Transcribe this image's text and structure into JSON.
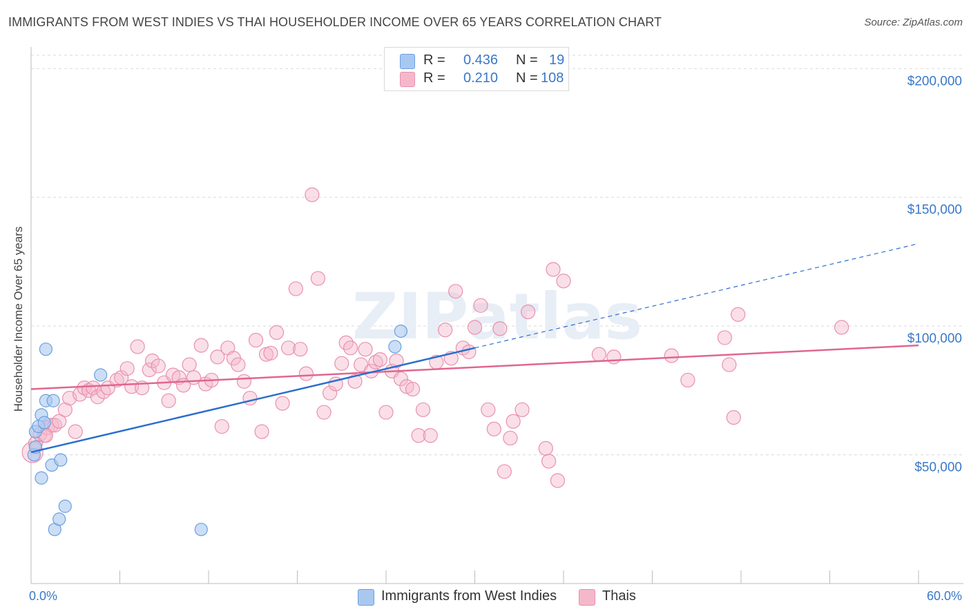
{
  "title": "IMMIGRANTS FROM WEST INDIES VS THAI HOUSEHOLDER INCOME OVER 65 YEARS CORRELATION CHART",
  "source": "Source: ZipAtlas.com",
  "watermark": "ZIPatlas",
  "legend": {
    "series1": {
      "r_label": "R =",
      "r_value": "0.436",
      "n_label": "N =",
      "n_value": "19"
    },
    "series2": {
      "r_label": "R =",
      "r_value": "0.210",
      "n_label": "N =",
      "n_value": "108"
    }
  },
  "colors": {
    "blue_fill": "#a9c8f0",
    "blue_stroke": "#6a9fe0",
    "blue_line": "#2a6ecf",
    "pink_fill": "#f5b8cb",
    "pink_stroke": "#e890ad",
    "pink_line": "#e06690",
    "axis_label": "#3a78c8"
  },
  "chart_data": {
    "type": "scatter",
    "title": "IMMIGRANTS FROM WEST INDIES VS THAI HOUSEHOLDER INCOME OVER 65 YEARS CORRELATION CHART",
    "xlabel": "",
    "ylabel": "Householder Income Over 65 years",
    "xlim": [
      0,
      60
    ],
    "ylim": [
      0,
      210000
    ],
    "x_tick_labels": [
      "0.0%",
      "60.0%"
    ],
    "y_ticks": [
      {
        "value": 50000,
        "label": "$50,000"
      },
      {
        "value": 100000,
        "label": "$100,000"
      },
      {
        "value": 150000,
        "label": "$150,000"
      },
      {
        "value": 200000,
        "label": "$200,000"
      }
    ],
    "series": [
      {
        "name": "Immigrants from West Indies",
        "color": "blue",
        "points": [
          [
            0.2,
            50000
          ],
          [
            0.3,
            53000
          ],
          [
            0.3,
            59000
          ],
          [
            0.5,
            61000
          ],
          [
            0.7,
            41000
          ],
          [
            0.7,
            65500
          ],
          [
            0.9,
            62500
          ],
          [
            1.0,
            71000
          ],
          [
            1.0,
            91000
          ],
          [
            1.4,
            46000
          ],
          [
            1.5,
            71000
          ],
          [
            1.6,
            21000
          ],
          [
            1.9,
            25000
          ],
          [
            2.0,
            48000
          ],
          [
            2.3,
            30000
          ],
          [
            4.7,
            81000
          ],
          [
            11.5,
            21000
          ],
          [
            24.6,
            92000
          ],
          [
            25.0,
            98000
          ]
        ],
        "trend": {
          "x0": 0,
          "y0": 51000,
          "x1": 30,
          "y1": 91500,
          "dash_x1": 60,
          "dash_y1": 132000
        }
      },
      {
        "name": "Thais",
        "color": "pink",
        "points": [
          [
            0.1,
            51000
          ],
          [
            0.3,
            54500
          ],
          [
            0.6,
            58000
          ],
          [
            0.9,
            57500
          ],
          [
            1.1,
            60500
          ],
          [
            1.4,
            61500
          ],
          [
            1.6,
            61500
          ],
          [
            1.9,
            63000
          ],
          [
            2.3,
            67500
          ],
          [
            2.6,
            72000
          ],
          [
            3.0,
            59000
          ],
          [
            3.3,
            73500
          ],
          [
            3.6,
            76000
          ],
          [
            3.9,
            75000
          ],
          [
            4.2,
            76000
          ],
          [
            4.5,
            72500
          ],
          [
            4.9,
            74500
          ],
          [
            5.2,
            76000
          ],
          [
            5.8,
            79000
          ],
          [
            6.1,
            80000
          ],
          [
            6.5,
            83500
          ],
          [
            6.8,
            76500
          ],
          [
            7.2,
            92000
          ],
          [
            7.5,
            76000
          ],
          [
            8.0,
            83000
          ],
          [
            8.2,
            86500
          ],
          [
            8.6,
            84500
          ],
          [
            9.0,
            78000
          ],
          [
            9.3,
            71000
          ],
          [
            9.6,
            81000
          ],
          [
            10.0,
            80000
          ],
          [
            10.3,
            77000
          ],
          [
            10.7,
            85000
          ],
          [
            11.0,
            80000
          ],
          [
            11.5,
            92500
          ],
          [
            11.8,
            77500
          ],
          [
            12.2,
            79000
          ],
          [
            12.6,
            88000
          ],
          [
            12.9,
            61000
          ],
          [
            13.3,
            91500
          ],
          [
            13.7,
            87500
          ],
          [
            14.0,
            85000
          ],
          [
            14.4,
            78500
          ],
          [
            14.8,
            72000
          ],
          [
            15.2,
            94500
          ],
          [
            15.6,
            59000
          ],
          [
            15.9,
            89000
          ],
          [
            16.2,
            89500
          ],
          [
            16.6,
            97500
          ],
          [
            17.0,
            70000
          ],
          [
            17.4,
            91500
          ],
          [
            17.9,
            114500
          ],
          [
            18.2,
            91000
          ],
          [
            18.6,
            81500
          ],
          [
            19.0,
            151000
          ],
          [
            19.4,
            118500
          ],
          [
            19.8,
            66500
          ],
          [
            20.2,
            74000
          ],
          [
            20.6,
            77500
          ],
          [
            21.0,
            85500
          ],
          [
            21.3,
            93500
          ],
          [
            21.6,
            91500
          ],
          [
            21.9,
            78500
          ],
          [
            22.3,
            85000
          ],
          [
            22.6,
            91000
          ],
          [
            23.0,
            82500
          ],
          [
            23.3,
            86000
          ],
          [
            23.6,
            87000
          ],
          [
            24.0,
            66500
          ],
          [
            24.4,
            82500
          ],
          [
            24.7,
            86500
          ],
          [
            25.0,
            79500
          ],
          [
            25.4,
            76500
          ],
          [
            25.8,
            75500
          ],
          [
            26.2,
            57500
          ],
          [
            26.5,
            67500
          ],
          [
            27.0,
            57500
          ],
          [
            27.4,
            86000
          ],
          [
            28.0,
            98500
          ],
          [
            28.4,
            87500
          ],
          [
            28.7,
            113500
          ],
          [
            29.2,
            91500
          ],
          [
            29.6,
            90000
          ],
          [
            30.0,
            99500
          ],
          [
            30.4,
            108000
          ],
          [
            30.9,
            67500
          ],
          [
            31.3,
            60000
          ],
          [
            31.7,
            99000
          ],
          [
            32.0,
            43500
          ],
          [
            32.4,
            56500
          ],
          [
            32.6,
            63000
          ],
          [
            33.2,
            67500
          ],
          [
            33.6,
            105500
          ],
          [
            34.8,
            52500
          ],
          [
            35.0,
            47500
          ],
          [
            35.3,
            122000
          ],
          [
            35.6,
            40000
          ],
          [
            36.0,
            117500
          ],
          [
            38.4,
            89000
          ],
          [
            39.4,
            88000
          ],
          [
            43.3,
            88500
          ],
          [
            44.4,
            79000
          ],
          [
            46.9,
            95500
          ],
          [
            47.2,
            85000
          ],
          [
            47.5,
            64500
          ],
          [
            47.8,
            104500
          ],
          [
            54.8,
            99500
          ],
          [
            1.0,
            57500
          ]
        ],
        "trend": {
          "x0": 0,
          "y0": 75500,
          "x1": 60,
          "y1": 92500
        }
      }
    ],
    "legend_position": "top-center",
    "grid": true
  }
}
